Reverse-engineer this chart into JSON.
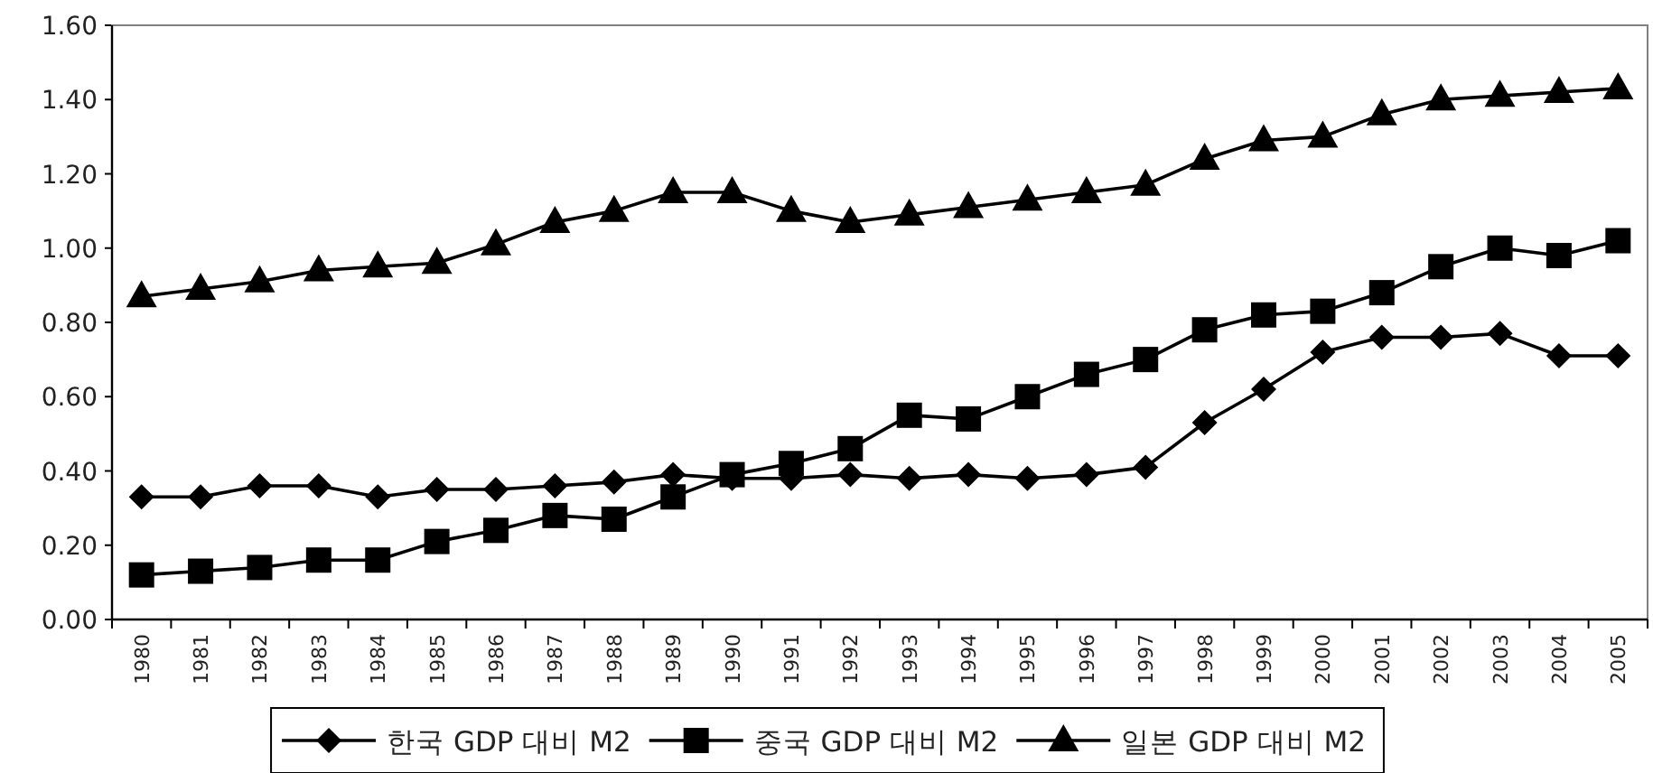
{
  "chart_data": {
    "type": "line",
    "categories": [
      "1980",
      "1981",
      "1982",
      "1983",
      "1984",
      "1985",
      "1986",
      "1987",
      "1988",
      "1989",
      "1990",
      "1991",
      "1992",
      "1993",
      "1994",
      "1995",
      "1996",
      "1997",
      "1998",
      "1999",
      "2000",
      "2001",
      "2002",
      "2003",
      "2004",
      "2005"
    ],
    "series": [
      {
        "name": "한국 GDP 대비 M2",
        "color": "#000000",
        "marker": "diamond",
        "values": [
          0.33,
          0.33,
          0.36,
          0.36,
          0.33,
          0.35,
          0.35,
          0.36,
          0.37,
          0.39,
          0.38,
          0.38,
          0.39,
          0.38,
          0.39,
          0.38,
          0.39,
          0.41,
          0.53,
          0.62,
          0.72,
          0.76,
          0.76,
          0.77,
          0.71,
          0.71
        ]
      },
      {
        "name": "중국 GDP 대비 M2",
        "color": "#000000",
        "marker": "square",
        "values": [
          0.12,
          0.13,
          0.14,
          0.16,
          0.16,
          0.21,
          0.24,
          0.28,
          0.27,
          0.33,
          0.39,
          0.42,
          0.46,
          0.55,
          0.54,
          0.6,
          0.66,
          0.7,
          0.78,
          0.82,
          0.83,
          0.88,
          0.95,
          1.0,
          0.98,
          1.02
        ]
      },
      {
        "name": "일본 GDP 대비 M2",
        "color": "#000000",
        "marker": "triangle",
        "values": [
          0.87,
          0.89,
          0.91,
          0.94,
          0.95,
          0.96,
          1.01,
          1.07,
          1.1,
          1.15,
          1.15,
          1.1,
          1.07,
          1.09,
          1.11,
          1.13,
          1.15,
          1.17,
          1.24,
          1.29,
          1.3,
          1.36,
          1.4,
          1.41,
          1.42,
          1.43
        ]
      }
    ],
    "ylim": [
      0,
      1.6
    ],
    "yticks": [
      {
        "value": 0,
        "label": "0.00"
      },
      {
        "value": 0.2,
        "label": "0.20"
      },
      {
        "value": 0.4,
        "label": "0.40"
      },
      {
        "value": 0.6,
        "label": "0.60"
      },
      {
        "value": 0.8,
        "label": "0.80"
      },
      {
        "value": 1.0,
        "label": "1.00"
      },
      {
        "value": 1.2,
        "label": "1.20"
      },
      {
        "value": 1.4,
        "label": "1.40"
      },
      {
        "value": 1.6,
        "label": "1.60"
      }
    ],
    "grid": false,
    "legend": "bottom",
    "line_style": "solid"
  }
}
